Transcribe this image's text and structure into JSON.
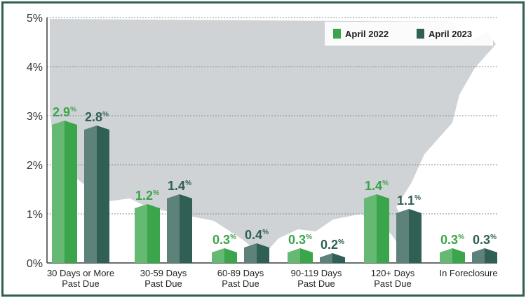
{
  "chart_data": {
    "type": "bar",
    "categories": [
      [
        "30 Days or More",
        "Past Due"
      ],
      [
        "30-59 Days",
        "Past Due"
      ],
      [
        "60-89 Days",
        "Past Due"
      ],
      [
        "90-119 Days",
        "Past Due"
      ],
      [
        "120+ Days",
        "Past Due"
      ],
      [
        "In Foreclosure"
      ]
    ],
    "series": [
      {
        "name": "April 2022",
        "values": [
          2.9,
          1.2,
          0.3,
          0.3,
          1.4,
          0.3
        ],
        "labels": [
          "2.9",
          "1.2",
          "0.3",
          "0.3",
          "1.4",
          "0.3"
        ],
        "color": "#3aa54a",
        "label_color": "#3aa54a"
      },
      {
        "name": "April 2023",
        "values": [
          2.8,
          1.4,
          0.4,
          0.2,
          1.1,
          0.3
        ],
        "labels": [
          "2.8",
          "1.4",
          "0.4",
          "0.2",
          "1.1",
          "0.3"
        ],
        "color": "#2f5f55",
        "label_color": "#2f5f55"
      }
    ],
    "value_suffix": "%",
    "ylim": [
      0,
      5
    ],
    "yticks": [
      "0%",
      "1%",
      "2%",
      "3%",
      "4%",
      "5%"
    ],
    "grid": true,
    "legend_position": "top-right",
    "background": "US map silhouette"
  }
}
